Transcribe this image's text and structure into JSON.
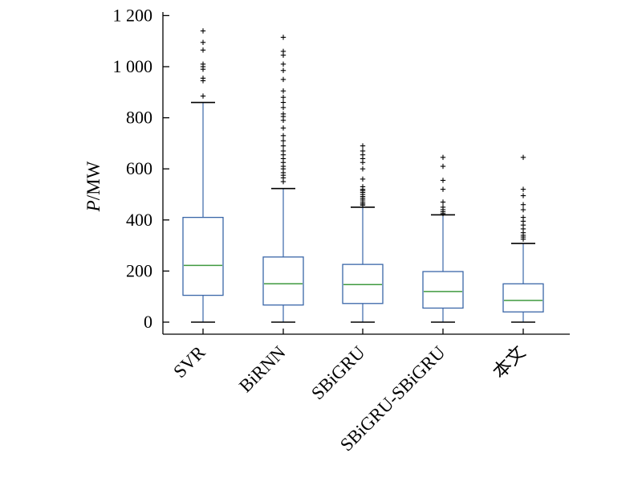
{
  "chart_data": {
    "type": "boxplot",
    "ylabel_italic": "P",
    "ylabel_rest": "/MW",
    "ylim": [
      0,
      1200
    ],
    "yticks": [
      0,
      200,
      400,
      600,
      800,
      1000,
      1200
    ],
    "ytick_labels": [
      "0",
      "200",
      "400",
      "600",
      "800",
      "1 000",
      "1 200"
    ],
    "categories": [
      "SVR",
      "BiRNN",
      "SBiGRU",
      "SBiGRU-SBiGRU",
      "本文"
    ],
    "box_color": "#3a66a8",
    "median_color": "#3f9a3f",
    "outlier_color": "#000000",
    "boxes": [
      {
        "min": 0,
        "q1": 105,
        "median": 222,
        "q3": 410,
        "max": 860,
        "outliers": [
          885,
          945,
          955,
          990,
          1000,
          1010,
          1065,
          1095,
          1140
        ]
      },
      {
        "min": 0,
        "q1": 67,
        "median": 150,
        "q3": 255,
        "max": 523,
        "outliers": [
          550,
          565,
          575,
          585,
          600,
          610,
          625,
          640,
          655,
          670,
          690,
          710,
          730,
          760,
          790,
          805,
          815,
          840,
          860,
          880,
          905,
          950,
          985,
          1010,
          1045,
          1060,
          1115
        ]
      },
      {
        "min": 0,
        "q1": 73,
        "median": 147,
        "q3": 226,
        "max": 450,
        "outliers": [
          458,
          463,
          470,
          478,
          485,
          492,
          500,
          508,
          515,
          520,
          530,
          560,
          600,
          625,
          640,
          655,
          670,
          690
        ]
      },
      {
        "min": 0,
        "q1": 55,
        "median": 120,
        "q3": 198,
        "max": 420,
        "outliers": [
          425,
          432,
          440,
          450,
          470,
          520,
          555,
          610,
          645
        ]
      },
      {
        "min": 0,
        "q1": 40,
        "median": 85,
        "q3": 150,
        "max": 308,
        "outliers": [
          325,
          333,
          340,
          350,
          365,
          380,
          395,
          410,
          440,
          460,
          495,
          520,
          645
        ]
      }
    ]
  }
}
